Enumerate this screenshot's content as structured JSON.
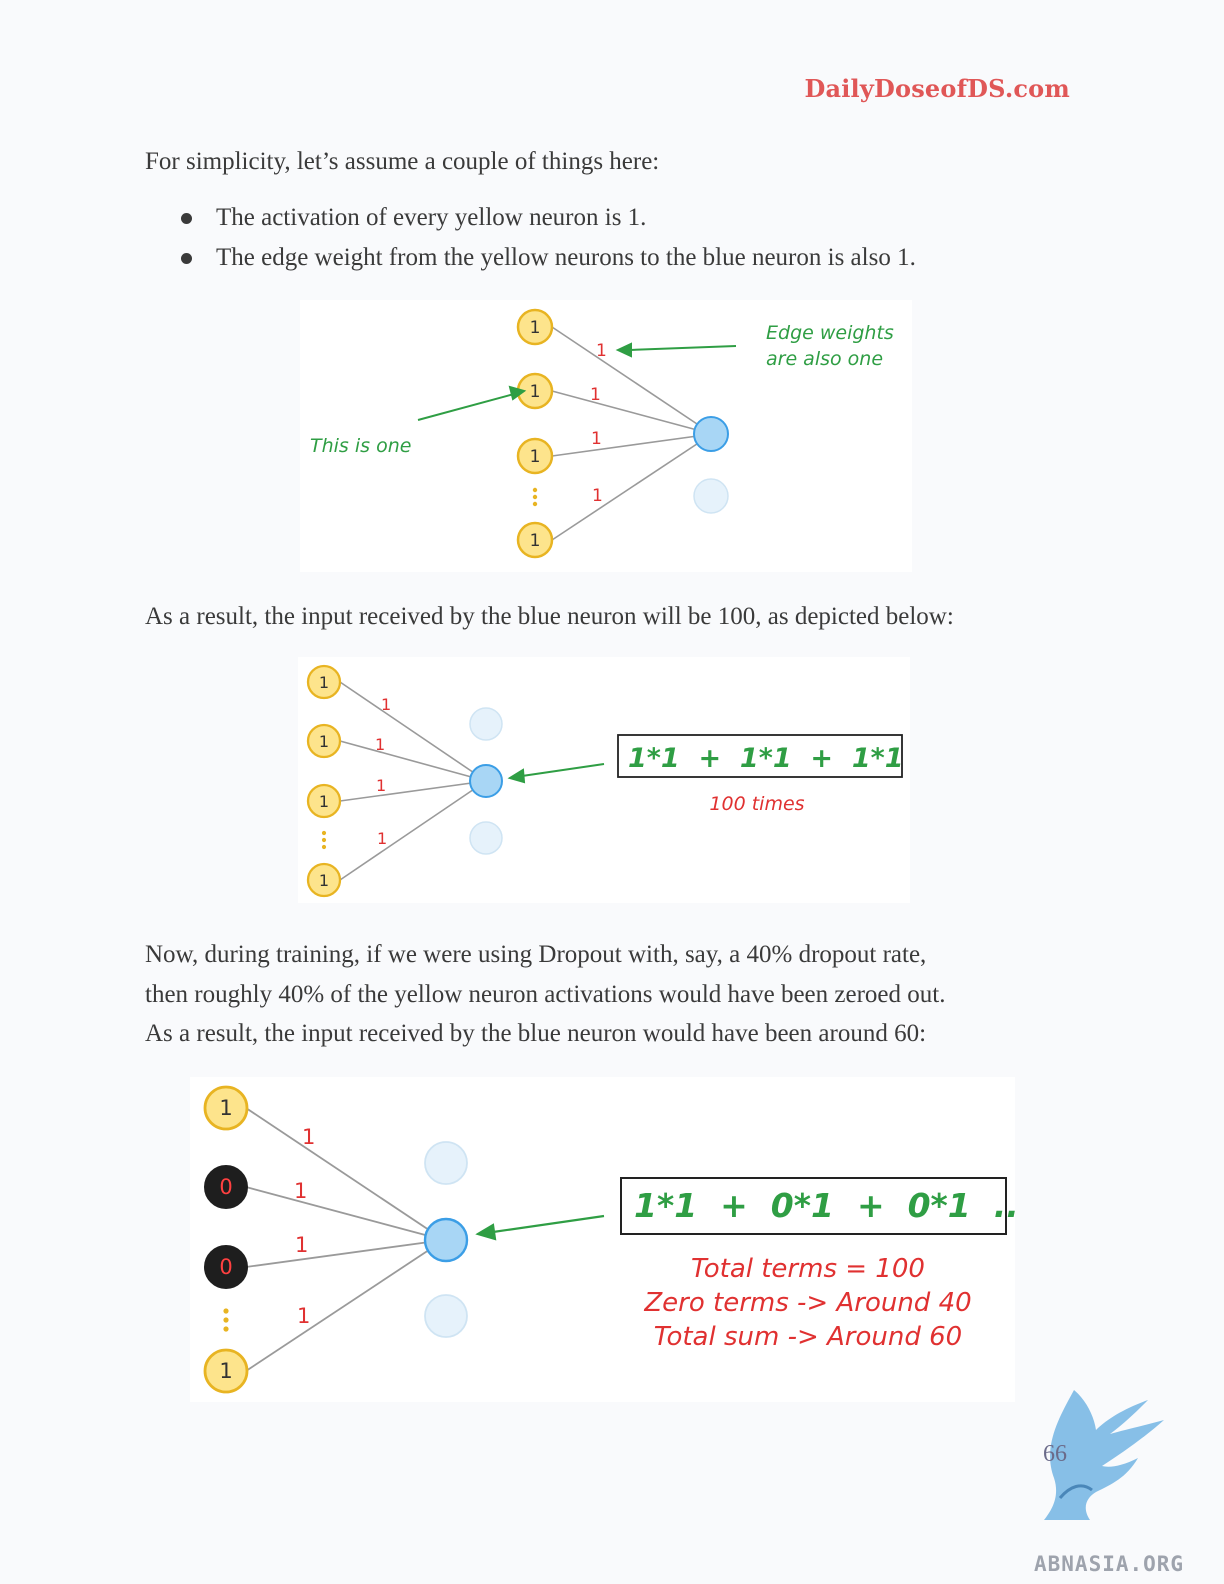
{
  "header": {
    "site": "DailyDoseofDS.com"
  },
  "intro": "For simplicity, let’s assume a couple of things here:",
  "bullets": [
    "The activation of every yellow neuron is 1.",
    "The edge weight from the yellow neurons to the blue neuron is also 1."
  ],
  "figure1": {
    "node_labels": [
      "1",
      "1",
      "1",
      "1"
    ],
    "edge_labels": [
      "1",
      "1",
      "1",
      "1"
    ],
    "annotation_left": "This is one",
    "annotation_right_line1": "Edge weights",
    "annotation_right_line2": "are also one"
  },
  "para2": "As a result, the input received by the blue neuron will be 100, as depicted below:",
  "figure2": {
    "node_labels": [
      "1",
      "1",
      "1",
      "1"
    ],
    "edge_labels": [
      "1",
      "1",
      "1",
      "1"
    ],
    "expression": "1*1  +  1*1  +  1*1  ...",
    "caption": "100 times"
  },
  "para3": [
    "Now, during training, if we were using Dropout with, say, a 40% dropout rate,",
    "then roughly 40% of the yellow neuron activations would have been zeroed out.",
    "As a result, the input received by the blue neuron would have been around 60:"
  ],
  "figure3": {
    "node_labels": [
      "1",
      "0",
      "0",
      "1"
    ],
    "edge_labels": [
      "1",
      "1",
      "1",
      "1"
    ],
    "expression": "1*1  +  0*1  +  0*1  ...",
    "notes": [
      "Total terms = 100",
      "Zero terms -> Around 40",
      "Total sum -> Around 60"
    ]
  },
  "footer": {
    "page_number": "66",
    "watermark": "ABNASIA.ORG"
  },
  "colors": {
    "brand_red": "#e05757",
    "yellow_fill": "#fde48c",
    "yellow_stroke": "#e8b422",
    "blue_fill": "#a8d6f5",
    "blue_stroke": "#3b9ee6",
    "green": "#2f9e44",
    "red": "#e03131"
  }
}
